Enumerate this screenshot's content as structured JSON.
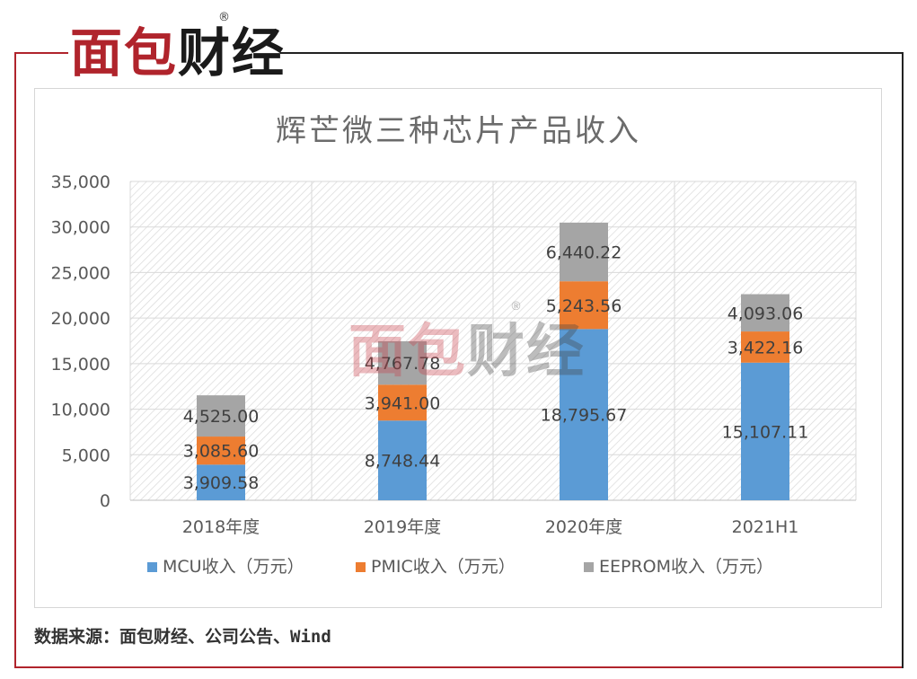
{
  "logo": {
    "part1": "面包",
    "part2": "财经",
    "reg": "®"
  },
  "watermark": {
    "part1": "面包",
    "part2": "财经",
    "reg": "®"
  },
  "source": "数据来源：面包财经、公司公告、Wind",
  "colors": {
    "mcu": "#5b9bd5",
    "pmic": "#ed7d31",
    "eeprom": "#a5a5a5",
    "brand_red": "#b0242c"
  },
  "chart_data": {
    "type": "bar",
    "stacked": true,
    "title": "辉芒微三种芯片产品收入",
    "categories": [
      "2018年度",
      "2019年度",
      "2020年度",
      "2021H1"
    ],
    "series": [
      {
        "name": "MCU收入（万元）",
        "values": [
          3909.58,
          8748.44,
          18795.67,
          15107.11
        ],
        "labels": [
          "3,909.58",
          "8,748.44",
          "18,795.67",
          "15,107.11"
        ]
      },
      {
        "name": "PMIC收入（万元）",
        "values": [
          3085.6,
          3941.0,
          5243.56,
          3422.16
        ],
        "labels": [
          "3,085.60",
          "3,941.00",
          "5,243.56",
          "3,422.16"
        ]
      },
      {
        "name": "EEPROM收入（万元）",
        "values": [
          4525.0,
          4767.78,
          6440.22,
          4093.06
        ],
        "labels": [
          "4,525.00",
          "4,767.78",
          "6,440.22",
          "4,093.06"
        ]
      }
    ],
    "ylim": [
      0,
      35000
    ],
    "yticks": [
      "0",
      "5,000",
      "10,000",
      "15,000",
      "20,000",
      "25,000",
      "30,000",
      "35,000"
    ],
    "grid": true,
    "legend": "bottom"
  }
}
